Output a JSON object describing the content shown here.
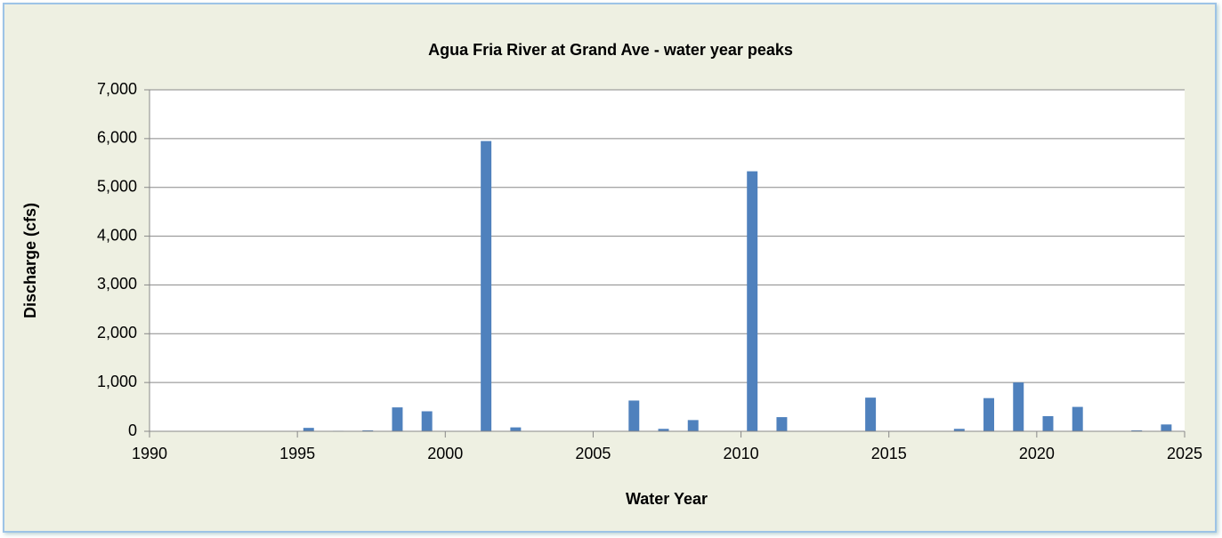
{
  "chart_data": {
    "type": "bar",
    "title": "Agua Fria River at Grand Ave - water year peaks",
    "x_label": "Water Year",
    "y_label": "Discharge (cfs)",
    "x": [
      1995,
      1996,
      1997,
      1998,
      1999,
      2001,
      2002,
      2006,
      2007,
      2008,
      2010,
      2011,
      2014,
      2017,
      2018,
      2019,
      2020,
      2021,
      2023,
      2024
    ],
    "values": [
      70,
      10,
      20,
      490,
      410,
      5950,
      80,
      630,
      50,
      230,
      5330,
      290,
      690,
      50,
      680,
      1000,
      310,
      500,
      20,
      140
    ],
    "color": "#4f81bd",
    "xlim": [
      1990,
      2025
    ],
    "xticks": [
      1990,
      1995,
      2000,
      2005,
      2010,
      2015,
      2020,
      2025
    ],
    "ylim": [
      0,
      7000
    ],
    "yticks": [
      0,
      {
        "value": 1000,
        "label": "1,000"
      },
      {
        "value": 2000,
        "label": "2,000"
      },
      {
        "value": 3000,
        "label": "3,000"
      },
      {
        "value": 4000,
        "label": "4,000"
      },
      {
        "value": 5000,
        "label": "5,000"
      },
      {
        "value": 6000,
        "label": "6,000"
      },
      {
        "value": 7000,
        "label": "7,000"
      }
    ],
    "grid": true
  }
}
